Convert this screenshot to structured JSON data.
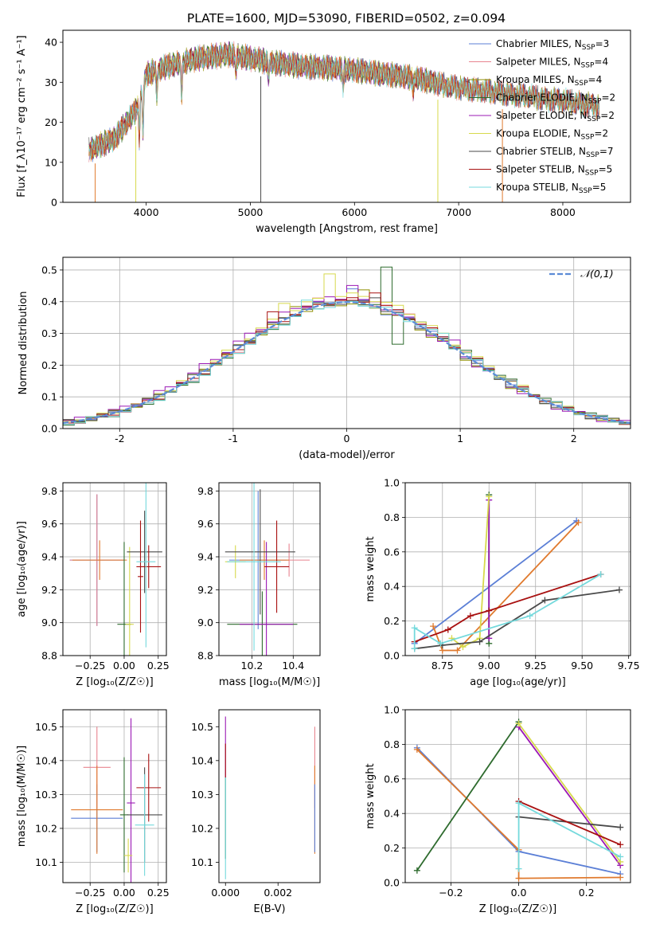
{
  "title": "PLATE=1600, MJD=53090, FIBERID=0502, z=0.094",
  "colors": {
    "chab_miles": "#5b7fd6",
    "salp_miles": "#e8848f",
    "krou_miles": "#8e8e00",
    "chab_elodie": "#2e6b2e",
    "salp_elodie": "#9b19b5",
    "krou_elodie": "#d7d94c",
    "chab_stelib": "#4a4a4a",
    "salp_stelib": "#a81010",
    "krou_stelib": "#74d9dc",
    "orange": "#e07a2e",
    "gaussian": "#5b8bd6",
    "grid": "#b0b0b0"
  },
  "chart_data": [
    {
      "id": "spectrum",
      "type": "line",
      "xlabel": "wavelength [Angstrom, rest frame]",
      "ylabel": "Flux [f_λ10⁻¹⁷ erg cm⁻² s⁻¹ A⁻¹]",
      "xlim": [
        3200,
        8650
      ],
      "ylim": [
        0,
        43
      ],
      "xticks": [
        4000,
        5000,
        6000,
        7000,
        8000
      ],
      "yticks": [
        0,
        10,
        20,
        30,
        40
      ],
      "grid": false,
      "legend_position": "right",
      "legend": [
        {
          "pre": "Chabrier MILES, N",
          "sub": "SSP",
          "post": "=3",
          "color": "chab_miles"
        },
        {
          "pre": "Salpeter MILES, N",
          "sub": "SSP",
          "post": "=4",
          "color": "salp_miles"
        },
        {
          "pre": "Kroupa MILES, N",
          "sub": "SSP",
          "post": "=4",
          "color": "krou_miles"
        },
        {
          "pre": "Chabrier ELODIE, N",
          "sub": "SSP",
          "post": "=2",
          "color": "chab_elodie"
        },
        {
          "pre": "Salpeter ELODIE, N",
          "sub": "SSP",
          "post": "=2",
          "color": "salp_elodie"
        },
        {
          "pre": "Kroupa ELODIE, N",
          "sub": "SSP",
          "post": "=2",
          "color": "krou_elodie"
        },
        {
          "pre": "Chabrier STELIB, N",
          "sub": "SSP",
          "post": "=7",
          "color": "chab_stelib"
        },
        {
          "pre": "Salpeter STELIB, N",
          "sub": "SSP",
          "post": "=5",
          "color": "salp_stelib"
        },
        {
          "pre": "Kroupa STELIB, N",
          "sub": "SSP",
          "post": "=5",
          "color": "krou_stelib"
        }
      ],
      "continuum": [
        [
          3450,
          13
        ],
        [
          3700,
          16
        ],
        [
          3900,
          23
        ],
        [
          4000,
          32
        ],
        [
          4200,
          34
        ],
        [
          4500,
          36
        ],
        [
          4800,
          37
        ],
        [
          5000,
          36
        ],
        [
          5200,
          35
        ],
        [
          5500,
          34
        ],
        [
          5800,
          33.5
        ],
        [
          6000,
          33
        ],
        [
          6300,
          32
        ],
        [
          6600,
          31
        ],
        [
          6900,
          29
        ],
        [
          7200,
          28
        ],
        [
          7500,
          27
        ],
        [
          7800,
          26
        ],
        [
          8100,
          25
        ],
        [
          8350,
          24
        ]
      ],
      "dips": [
        [
          3934,
          10
        ],
        [
          3969,
          12
        ],
        [
          4102,
          6
        ],
        [
          4340,
          8
        ],
        [
          4861,
          5
        ],
        [
          5175,
          4
        ],
        [
          5890,
          4
        ],
        [
          6563,
          3
        ]
      ],
      "drops": [
        {
          "x": 3510,
          "color": "orange"
        },
        {
          "x": 3900,
          "color": "krou_elodie"
        },
        {
          "x": 5100,
          "color": "chab_stelib"
        },
        {
          "x": 6800,
          "color": "krou_elodie"
        },
        {
          "x": 7420,
          "color": "orange"
        }
      ]
    },
    {
      "id": "residual_histogram",
      "type": "histogram",
      "xlabel": "(data-model)/error",
      "ylabel": "Normed distribution",
      "xlim": [
        -2.5,
        2.5
      ],
      "ylim": [
        0,
        0.54
      ],
      "xticks": [
        -2,
        -1,
        0,
        1,
        2
      ],
      "yticks": [
        0.0,
        0.1,
        0.2,
        0.3,
        0.4,
        0.5
      ],
      "grid": true,
      "legend_position": "top-right",
      "legend_label": "𝒩(0,1)",
      "bin_width": 0.1,
      "series": [
        {
          "color": "chab_miles",
          "offset": 0.0,
          "amp": 0.405,
          "spikes": [
            [
              0.05,
              0.03
            ],
            [
              0.35,
              -0.02
            ]
          ]
        },
        {
          "color": "salp_miles",
          "offset": 0.03,
          "amp": 0.4,
          "spikes": [
            [
              -0.25,
              0.03
            ],
            [
              0.55,
              0.02
            ]
          ]
        },
        {
          "color": "krou_miles",
          "offset": -0.02,
          "amp": 0.395,
          "spikes": [
            [
              -0.45,
              0.03
            ],
            [
              0.15,
              0.04
            ]
          ]
        },
        {
          "color": "chab_elodie",
          "offset": 0.04,
          "amp": 0.4,
          "spikes": [
            [
              0.35,
              0.12
            ],
            [
              0.45,
              -0.1
            ]
          ]
        },
        {
          "color": "salp_elodie",
          "offset": -0.04,
          "amp": 0.41,
          "spikes": [
            [
              0.05,
              0.05
            ],
            [
              0.95,
              0.02
            ]
          ]
        },
        {
          "color": "krou_elodie",
          "offset": 0.01,
          "amp": 0.42,
          "spikes": [
            [
              -0.15,
              0.08
            ],
            [
              -0.55,
              0.04
            ]
          ]
        },
        {
          "color": "chab_stelib",
          "offset": -0.01,
          "amp": 0.4,
          "spikes": [
            [
              0.25,
              0.03
            ]
          ]
        },
        {
          "color": "salp_stelib",
          "offset": 0.02,
          "amp": 0.405,
          "spikes": [
            [
              -0.65,
              0.04
            ],
            [
              0.25,
              0.04
            ]
          ]
        },
        {
          "color": "krou_stelib",
          "offset": 0.03,
          "amp": 0.395,
          "spikes": [
            [
              -0.35,
              0.03
            ],
            [
              0.85,
              0.02
            ]
          ]
        }
      ]
    },
    {
      "id": "age_vs_Z",
      "type": "scatter",
      "xlabel": "Z [log₁₀(Z/Z☉)]",
      "ylabel": "age  [log₁₀(age/yr)]",
      "xlim": [
        -0.45,
        0.31
      ],
      "ylim": [
        8.8,
        9.85
      ],
      "xticks": [
        -0.25,
        0.0,
        0.25
      ],
      "xticklabels": [
        "−0.25",
        "0.00",
        "0.25"
      ],
      "yticks": [
        8.8,
        9.0,
        9.2,
        9.4,
        9.6,
        9.8
      ],
      "grid": true,
      "points": [
        {
          "x": -0.2,
          "y": 9.38,
          "xerr": 0.2,
          "yerr": 0.4,
          "color": "chab_miles"
        },
        {
          "x": -0.2,
          "y": 9.38,
          "xerr": 0.2,
          "yerr": 0.4,
          "color": "salp_miles"
        },
        {
          "x": -0.18,
          "y": 9.38,
          "xerr": 0.2,
          "yerr": 0.12,
          "color": "orange"
        },
        {
          "x": 0.0,
          "y": 8.99,
          "xerr": 0.05,
          "yerr": 0.5,
          "color": "chab_elodie"
        },
        {
          "x": 0.04,
          "y": 8.99,
          "xerr": 0.03,
          "yerr": 0.47,
          "color": "krou_elodie"
        },
        {
          "x": 0.15,
          "y": 9.43,
          "xerr": 0.13,
          "yerr": 0.25,
          "color": "chab_stelib"
        },
        {
          "x": 0.18,
          "y": 9.34,
          "xerr": 0.09,
          "yerr": 0.13,
          "color": "salp_stelib"
        },
        {
          "x": 0.12,
          "y": 9.28,
          "xerr": 0.02,
          "yerr": 0.34,
          "color": "salp_stelib"
        },
        {
          "x": 0.16,
          "y": 9.37,
          "xerr": 0.07,
          "yerr": 0.52,
          "color": "krou_stelib"
        }
      ]
    },
    {
      "id": "age_vs_mass",
      "type": "scatter",
      "xlabel": "mass [log₁₀(M/M☉)]",
      "ylabel": "",
      "xlim": [
        10.04,
        10.53
      ],
      "ylim": [
        8.8,
        9.85
      ],
      "xticks": [
        10.2,
        10.4
      ],
      "yticks": [
        8.8,
        9.0,
        9.2,
        9.4,
        9.6,
        9.8
      ],
      "grid": true,
      "points": [
        {
          "x": 10.23,
          "y": 9.38,
          "xerr": 0.14,
          "yerr": 0.42,
          "color": "chab_miles"
        },
        {
          "x": 10.38,
          "y": 9.38,
          "xerr": 0.1,
          "yerr": 0.1,
          "color": "salp_miles"
        },
        {
          "x": 10.26,
          "y": 9.38,
          "xerr": 0.12,
          "yerr": 0.12,
          "color": "orange"
        },
        {
          "x": 10.25,
          "y": 8.99,
          "xerr": 0.17,
          "yerr": 0.2,
          "color": "chab_elodie"
        },
        {
          "x": 10.27,
          "y": 8.99,
          "xerr": 0.13,
          "yerr": 0.5,
          "color": "salp_elodie"
        },
        {
          "x": 10.12,
          "y": 9.37,
          "xerr": 0.05,
          "yerr": 0.1,
          "color": "krou_elodie"
        },
        {
          "x": 10.24,
          "y": 9.43,
          "xerr": 0.17,
          "yerr": 0.38,
          "color": "chab_stelib"
        },
        {
          "x": 10.32,
          "y": 9.34,
          "xerr": 0.06,
          "yerr": 0.28,
          "color": "salp_stelib"
        },
        {
          "x": 10.21,
          "y": 9.37,
          "xerr": 0.13,
          "yerr": 0.54,
          "color": "krou_stelib"
        }
      ]
    },
    {
      "id": "weight_vs_age",
      "type": "line",
      "xlabel": "age  [log₁₀(age/yr)]",
      "ylabel": "mass weight",
      "xlim": [
        8.55,
        9.76
      ],
      "ylim": [
        0,
        1.0
      ],
      "xticks": [
        8.75,
        9.0,
        9.25,
        9.5,
        9.75
      ],
      "xticklabels": [
        "8.75",
        "9.00",
        "9.25",
        "9.50",
        "9.75"
      ],
      "yticks": [
        0.0,
        0.2,
        0.4,
        0.6,
        0.8,
        1.0
      ],
      "grid": true,
      "series": [
        {
          "color": "chab_miles",
          "x": [
            8.6,
            9.47
          ],
          "y": [
            0.07,
            0.78
          ]
        },
        {
          "color": "orange",
          "x": [
            8.7,
            8.75,
            8.83,
            9.48
          ],
          "y": [
            0.17,
            0.03,
            0.03,
            0.77
          ]
        },
        {
          "color": "chab_elodie",
          "x": [
            9.0,
            9.0
          ],
          "y": [
            0.07,
            0.93
          ]
        },
        {
          "color": "salp_elodie",
          "x": [
            9.0,
            9.0
          ],
          "y": [
            0.1,
            0.9
          ]
        },
        {
          "color": "krou_elodie",
          "x": [
            8.8,
            8.86,
            8.95,
            9.0
          ],
          "y": [
            0.1,
            0.05,
            0.1,
            0.92
          ]
        },
        {
          "color": "chab_stelib",
          "x": [
            8.6,
            8.75,
            8.95,
            9.3,
            9.7
          ],
          "y": [
            0.04,
            0.06,
            0.08,
            0.32,
            0.38
          ]
        },
        {
          "color": "salp_stelib",
          "x": [
            8.6,
            8.78,
            8.9,
            9.0,
            9.6
          ],
          "y": [
            0.08,
            0.15,
            0.23,
            0.26,
            0.47
          ]
        },
        {
          "color": "krou_stelib",
          "x": [
            8.6,
            8.6,
            8.74,
            9.22,
            9.6
          ],
          "y": [
            0.04,
            0.16,
            0.07,
            0.23,
            0.47
          ]
        }
      ]
    },
    {
      "id": "mass_vs_Z",
      "type": "scatter",
      "xlabel": "Z [log₁₀(Z/Z☉)]",
      "ylabel": "mass [log₁₀(M/M☉)]",
      "xlim": [
        -0.45,
        0.31
      ],
      "ylim": [
        10.04,
        10.55
      ],
      "xticks": [
        -0.25,
        0.0,
        0.25
      ],
      "xticklabels": [
        "−0.25",
        "0.00",
        "0.25"
      ],
      "yticks": [
        10.1,
        10.2,
        10.3,
        10.4,
        10.5
      ],
      "grid": true,
      "points": [
        {
          "x": -0.2,
          "y": 10.23,
          "xerr": 0.19,
          "yerr": 0.1,
          "color": "chab_miles"
        },
        {
          "x": -0.2,
          "y": 10.38,
          "xerr": 0.1,
          "yerr": 0.12,
          "color": "salp_miles"
        },
        {
          "x": -0.2,
          "y": 10.255,
          "xerr": 0.19,
          "yerr": 0.13,
          "color": "orange"
        },
        {
          "x": 0.0,
          "y": 10.24,
          "xerr": 0.03,
          "yerr": 0.17,
          "color": "chab_elodie"
        },
        {
          "x": 0.05,
          "y": 10.275,
          "xerr": 0.03,
          "yerr": 0.25,
          "color": "salp_elodie"
        },
        {
          "x": 0.03,
          "y": 10.12,
          "xerr": 0.03,
          "yerr": 0.05,
          "color": "krou_elodie"
        },
        {
          "x": 0.15,
          "y": 10.24,
          "xerr": 0.13,
          "yerr": 0.14,
          "color": "chab_stelib"
        },
        {
          "x": 0.18,
          "y": 10.32,
          "xerr": 0.09,
          "yerr": 0.1,
          "color": "salp_stelib"
        },
        {
          "x": 0.15,
          "y": 10.21,
          "xerr": 0.07,
          "yerr": 0.15,
          "color": "krou_stelib"
        }
      ]
    },
    {
      "id": "mass_vs_ebv",
      "type": "scatter",
      "xlabel": "E(B-V)",
      "ylabel": "",
      "xlim": [
        -0.00025,
        0.0036
      ],
      "ylim": [
        10.04,
        10.55
      ],
      "xticks": [
        0.0,
        0.002
      ],
      "xticklabels": [
        "0.000",
        "0.002"
      ],
      "yticks": [
        10.1,
        10.2,
        10.3,
        10.4,
        10.5
      ],
      "grid": false,
      "points": [
        {
          "x": 0.0,
          "y": 10.44,
          "xerr": 0,
          "yerr": 0.09,
          "color": "salp_elodie"
        },
        {
          "x": 0.0,
          "y": 10.4,
          "xerr": 0,
          "yerr": 0.05,
          "color": "salp_stelib"
        },
        {
          "x": 0.0,
          "y": 10.23,
          "xerr": 0,
          "yerr": 0.12,
          "color": "chab_elodie"
        },
        {
          "x": 0.0,
          "y": 10.2,
          "xerr": 0,
          "yerr": 0.15,
          "color": "krou_stelib"
        },
        {
          "x": 0.0034,
          "y": 10.38,
          "xerr": 0,
          "yerr": 0.12,
          "color": "salp_miles"
        },
        {
          "x": 0.0034,
          "y": 10.255,
          "xerr": 0,
          "yerr": 0.13,
          "color": "orange"
        },
        {
          "x": 0.0034,
          "y": 10.23,
          "xerr": 0,
          "yerr": 0.1,
          "color": "chab_miles"
        }
      ]
    },
    {
      "id": "weight_vs_Z",
      "type": "line",
      "xlabel": "Z [log₁₀(Z/Z☉)]",
      "ylabel": "mass weight",
      "xlim": [
        -0.335,
        0.33
      ],
      "ylim": [
        0,
        1.0
      ],
      "xticks": [
        -0.2,
        0.0,
        0.2
      ],
      "xticklabels": [
        "−0.2",
        "0.0",
        "0.2"
      ],
      "yticks": [
        0.0,
        0.2,
        0.4,
        0.6,
        0.8,
        1.0
      ],
      "grid": true,
      "series": [
        {
          "color": "chab_miles",
          "x": [
            -0.3,
            0.0,
            0.3
          ],
          "y": [
            0.78,
            0.18,
            0.05
          ]
        },
        {
          "color": "orange",
          "x": [
            -0.3,
            0.0,
            0.0,
            0.3
          ],
          "y": [
            0.77,
            0.19,
            0.025,
            0.03
          ]
        },
        {
          "color": "chab_elodie",
          "x": [
            -0.3,
            0.0
          ],
          "y": [
            0.07,
            0.93
          ]
        },
        {
          "color": "salp_elodie",
          "x": [
            0.0,
            0.3
          ],
          "y": [
            0.9,
            0.1
          ]
        },
        {
          "color": "krou_elodie",
          "x": [
            0.0,
            0.3
          ],
          "y": [
            0.92,
            0.12
          ]
        },
        {
          "color": "chab_stelib",
          "x": [
            0.0,
            0.3
          ],
          "y": [
            0.38,
            0.32
          ]
        },
        {
          "color": "salp_stelib",
          "x": [
            0.0,
            0.3
          ],
          "y": [
            0.47,
            0.22
          ]
        },
        {
          "color": "krou_stelib",
          "x": [
            0.0,
            0.0,
            0.3
          ],
          "y": [
            0.08,
            0.46,
            0.15
          ]
        }
      ]
    }
  ]
}
